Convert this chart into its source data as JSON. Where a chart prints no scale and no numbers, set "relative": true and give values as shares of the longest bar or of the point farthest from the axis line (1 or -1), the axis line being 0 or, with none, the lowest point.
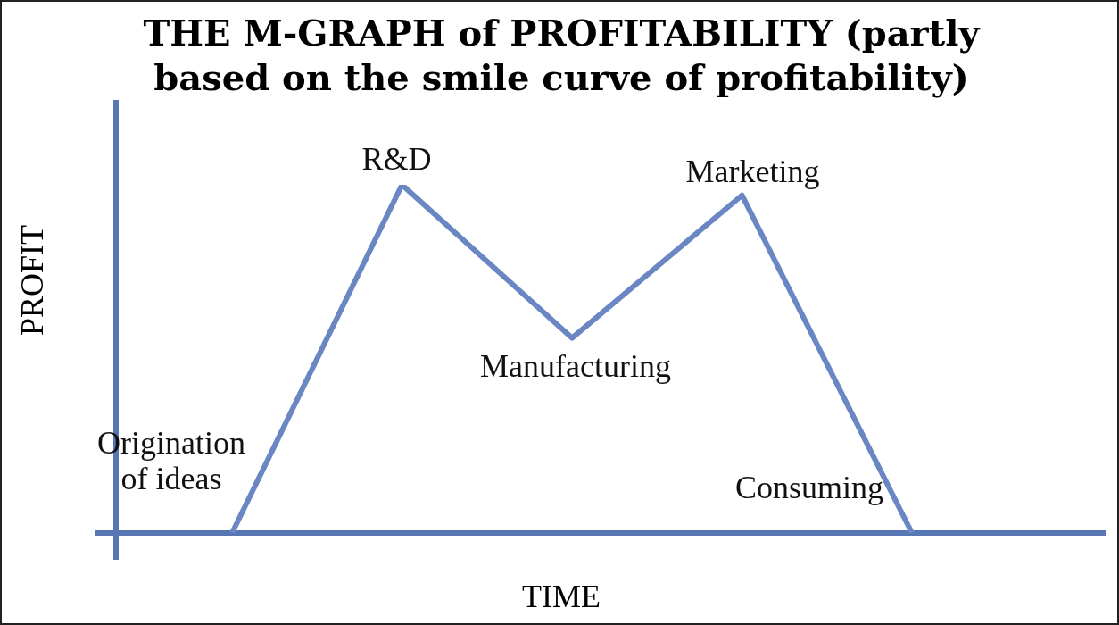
{
  "chart_data": {
    "type": "line",
    "title": "THE M-GRAPH of PROFITABILITY (partly based on the smile curve of profitability)",
    "xlabel": "TIME",
    "ylabel": "PROFIT",
    "relative": true,
    "categories": [
      null,
      null,
      null,
      null,
      null
    ],
    "series": [
      {
        "color": "#6a87c4",
        "values": [
          0,
          1,
          0.56,
          0.97,
          0
        ]
      }
    ],
    "annotations": [
      "Origination of ideas",
      "R&D",
      "Manufacturing",
      "Marketing",
      "Consuming"
    ],
    "tick_labels": false,
    "grid": false,
    "legend": false,
    "marker": "none",
    "line_style": "solid"
  }
}
